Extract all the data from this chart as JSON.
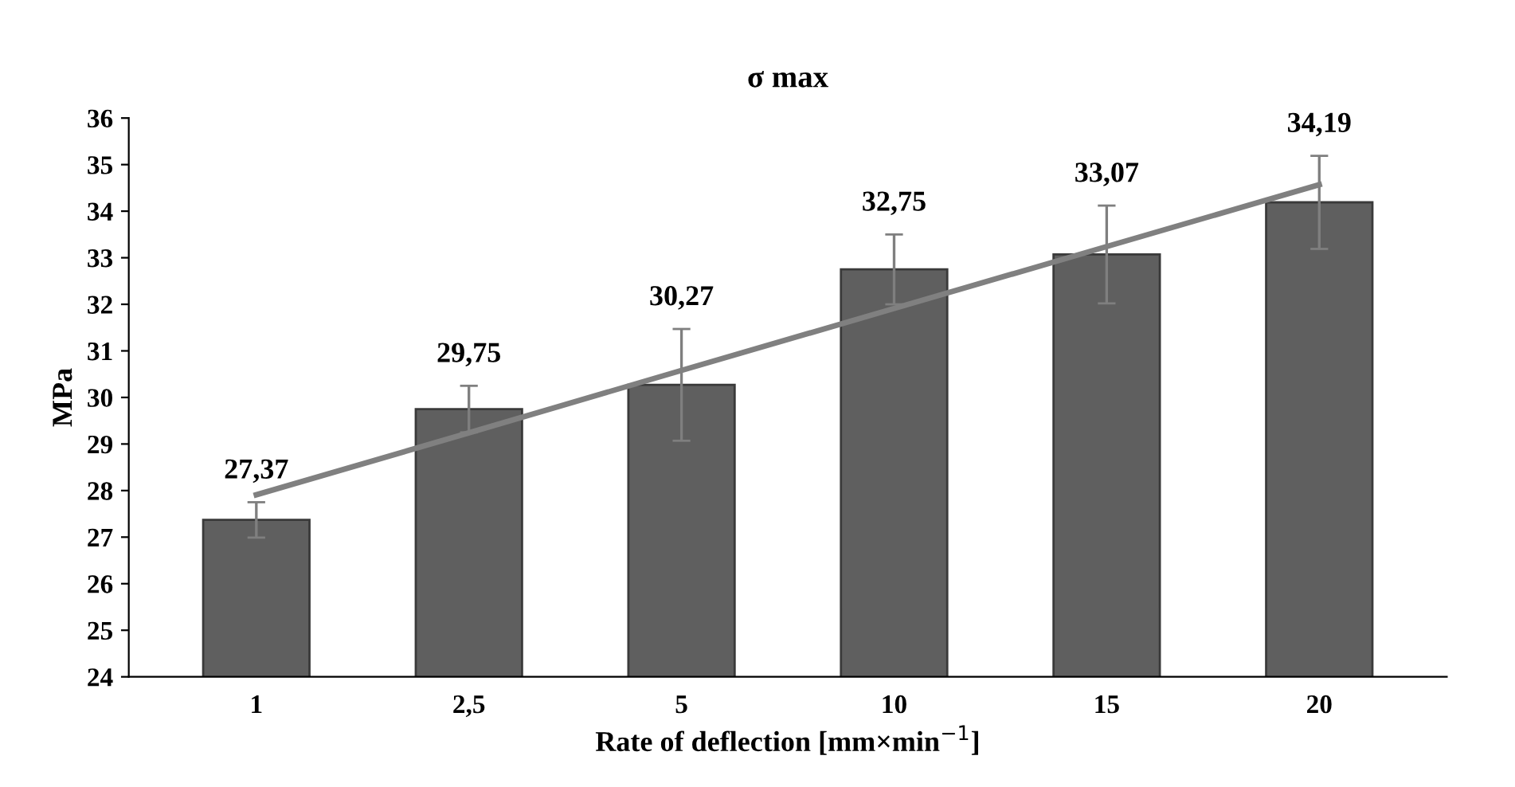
{
  "chart_data": {
    "type": "bar",
    "title": "σ max",
    "xlabel": "Rate of deflection [mm×min$^{−1}$]",
    "ylabel": "MPa",
    "categories": [
      "1",
      "2,5",
      "5",
      "10",
      "15",
      "20"
    ],
    "series": [
      {
        "color": "#5f5f5f",
        "values": [
          27.37,
          29.75,
          30.27,
          32.75,
          33.07,
          34.19
        ],
        "errors": [
          0.38,
          0.5,
          1.2,
          0.75,
          1.05,
          1.0
        ],
        "value_labels": [
          "27,37",
          "29,75",
          "30,27",
          "32,75",
          "33,07",
          "34,19"
        ]
      },
      {
        "type": "line",
        "color": "#808080",
        "values": [
          27.91,
          29.24,
          30.58,
          31.91,
          33.24,
          34.57
        ]
      }
    ],
    "ylim": [
      24,
      36
    ],
    "yticks": [
      24,
      25,
      26,
      27,
      28,
      29,
      30,
      31,
      32,
      33,
      34,
      35,
      36
    ],
    "grid": false,
    "legend": false
  }
}
